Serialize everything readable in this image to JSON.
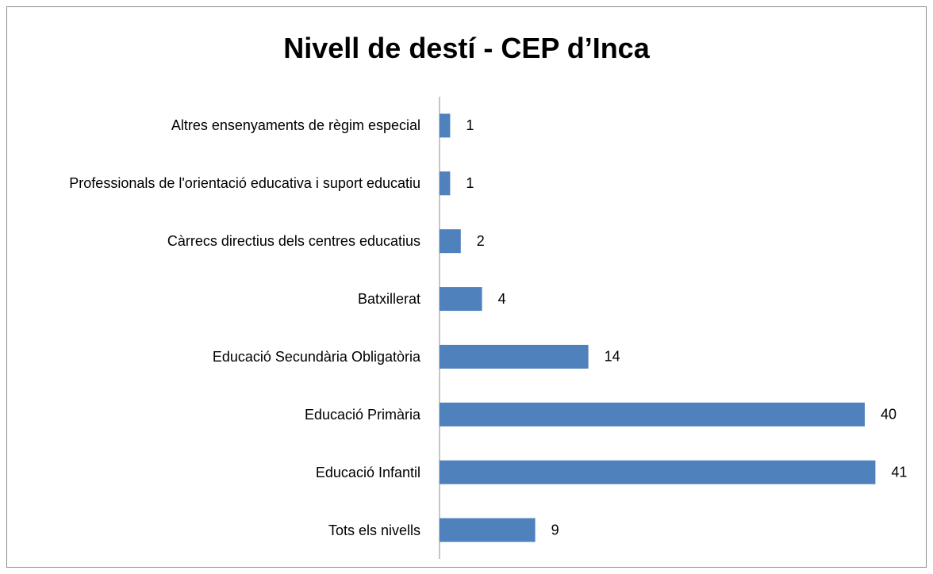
{
  "chart_data": {
    "type": "bar",
    "orientation": "horizontal",
    "title": "Nivell de destí - CEP d’Inca",
    "categories": [
      "Altres ensenyaments de règim especial",
      "Professionals de l'orientació educativa i suport educatiu",
      "Càrrecs directius dels centres educatius",
      "Batxillerat",
      "Educació Secundària Obligatòria",
      "Educació Primària",
      "Educació Infantil",
      "Tots els nivells"
    ],
    "values": [
      1,
      1,
      2,
      4,
      14,
      40,
      41,
      9
    ],
    "color": "#4f81bd",
    "xlim": [
      0,
      45
    ]
  }
}
